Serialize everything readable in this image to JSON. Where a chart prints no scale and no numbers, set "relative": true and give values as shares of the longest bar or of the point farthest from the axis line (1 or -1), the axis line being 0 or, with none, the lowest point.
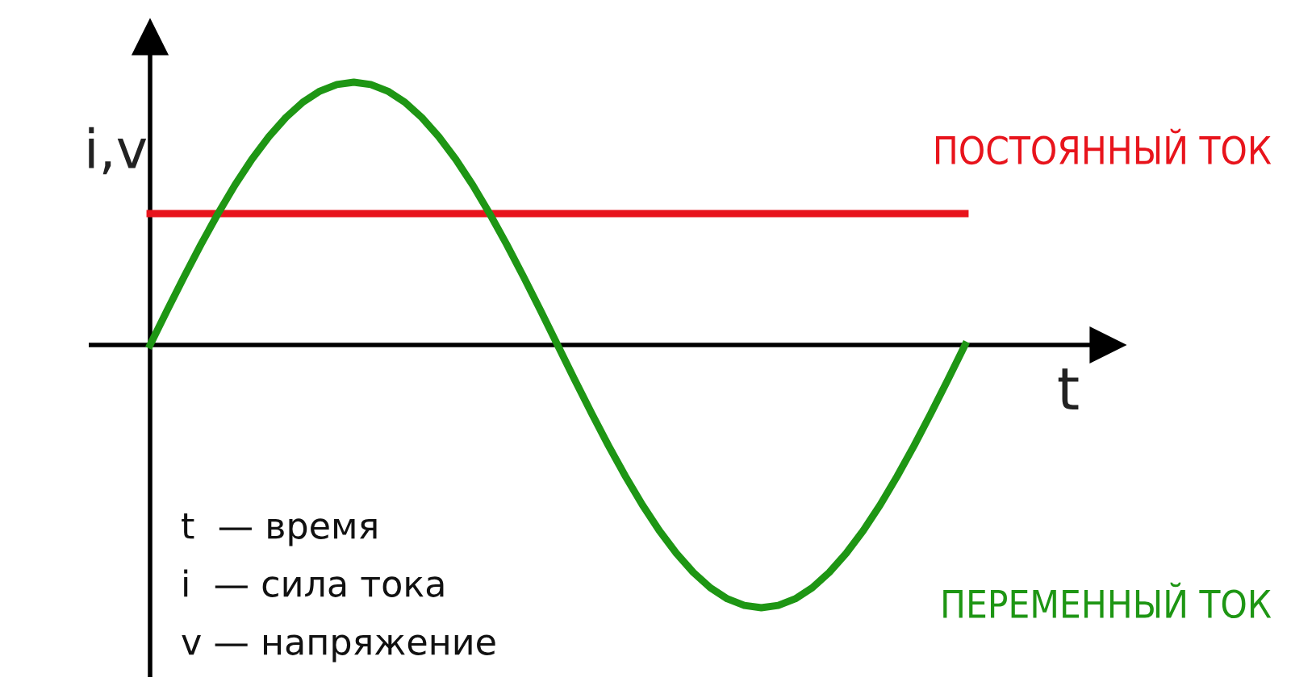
{
  "chart_data": {
    "type": "line",
    "relative": true,
    "xlabel": "t",
    "ylabel": "i,v",
    "categories": [
      null,
      null,
      null,
      null,
      null,
      null,
      null,
      null,
      null,
      null,
      null,
      null,
      null,
      null,
      null,
      null,
      null,
      null,
      null,
      null,
      null,
      null,
      null,
      null,
      null,
      null,
      null,
      null,
      null,
      null,
      null,
      null,
      null,
      null,
      null,
      null,
      null,
      null,
      null,
      null,
      null,
      null,
      null,
      null,
      null,
      null,
      null,
      null,
      null
    ],
    "series": [
      {
        "name": "ПОСТОЯННЫЙ ТОК",
        "color": "#e8141c",
        "values": [
          0.5,
          0.5,
          0.5,
          0.5,
          0.5,
          0.5,
          0.5,
          0.5,
          0.5,
          0.5,
          0.5,
          0.5,
          0.5,
          0.5,
          0.5,
          0.5,
          0.5,
          0.5,
          0.5,
          0.5,
          0.5,
          0.5,
          0.5,
          0.5,
          0.5,
          0.5,
          0.5,
          0.5,
          0.5,
          0.5,
          0.5,
          0.5,
          0.5,
          0.5,
          0.5,
          0.5,
          0.5,
          0.5,
          0.5,
          0.5,
          0.5,
          0.5,
          0.5,
          0.5,
          0.5,
          0.5,
          0.5,
          0.5,
          0.5
        ]
      },
      {
        "name": "ПЕРЕМЕННЫЙ ТОК",
        "color": "#1e9614",
        "values": [
          0,
          0.131,
          0.259,
          0.383,
          0.5,
          0.609,
          0.707,
          0.793,
          0.866,
          0.924,
          0.966,
          0.991,
          1,
          0.991,
          0.966,
          0.924,
          0.866,
          0.793,
          0.707,
          0.609,
          0.5,
          0.383,
          0.259,
          0.131,
          0,
          -0.131,
          -0.259,
          -0.383,
          -0.5,
          -0.609,
          -0.707,
          -0.793,
          -0.866,
          -0.924,
          -0.966,
          -0.991,
          -1,
          -0.991,
          -0.966,
          -0.924,
          -0.866,
          -0.793,
          -0.707,
          -0.609,
          -0.5,
          -0.383,
          -0.259,
          -0.131,
          0
        ]
      }
    ],
    "annotations": [
      "t  — время",
      "i  — сила тока",
      "v — напряжение"
    ],
    "legend": false,
    "marker": "none",
    "line_style": "solid"
  }
}
